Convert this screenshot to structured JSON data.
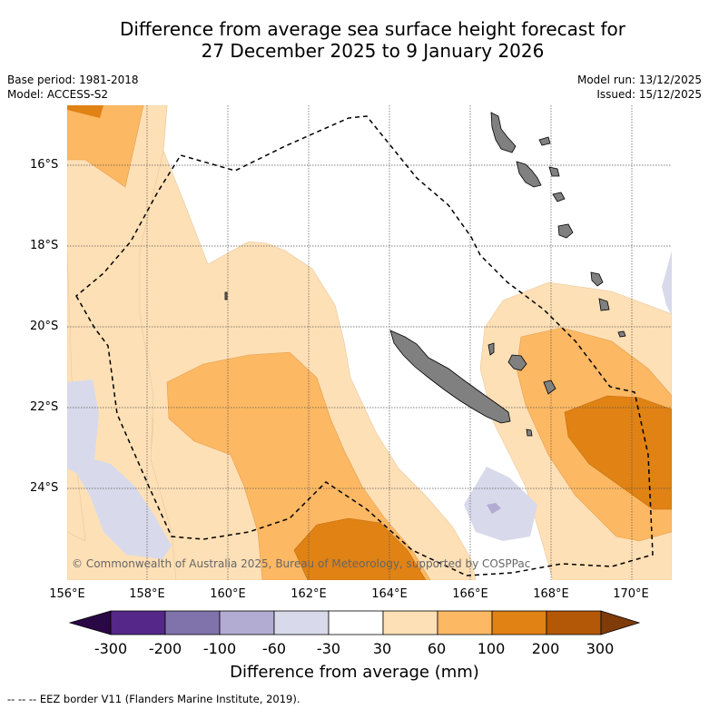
{
  "title": {
    "line1": "Difference from average sea surface height forecast for",
    "line2": "27 December 2025 to 9 January 2026"
  },
  "meta": {
    "base_period": "Base period: 1981-2018",
    "model": "Model: ACCESS-S2",
    "model_run": "Model run: 13/12/2025",
    "issued": "Issued: 15/12/2025"
  },
  "map": {
    "latitude_labels": [
      "16°S",
      "18°S",
      "20°S",
      "22°S",
      "24°S"
    ],
    "longitude_labels": [
      "156°E",
      "158°E",
      "160°E",
      "162°E",
      "164°E",
      "166°E",
      "168°E",
      "170°E"
    ],
    "credit": "© Commonwealth of Australia 2025, Bureau of Meteorology, supported by COSPPac",
    "colors": {
      "land": "#808080",
      "coast": "#000000",
      "gridline": "#555555",
      "eez_border": "#000000"
    }
  },
  "colorbar": {
    "labels": [
      "-300",
      "-200",
      "-100",
      "-60",
      "-30",
      "30",
      "60",
      "100",
      "200",
      "300"
    ],
    "colors": [
      "#2a0845",
      "#542788",
      "#8073ac",
      "#b2abd2",
      "#d8daeb",
      "#ffffff",
      "#fee0b6",
      "#fdb863",
      "#e08214",
      "#b35806",
      "#7f3b08"
    ],
    "title": "Difference from average (mm)"
  },
  "footnote": "--  --  -- EEZ border V11 (Flanders Marine Institute, 2019)."
}
